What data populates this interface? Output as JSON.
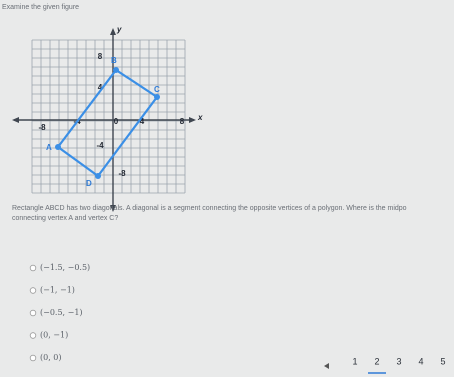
{
  "header": {
    "instruction": "Examine the given figure"
  },
  "figure": {
    "x_axis_label": "x",
    "y_axis_label": "y",
    "x_tick_labels": [
      "-8",
      "-4",
      "0",
      "4",
      "8"
    ],
    "y_tick_labels": [
      "8",
      "4",
      "-4",
      "-8"
    ],
    "vertices": [
      "A",
      "B",
      "C",
      "D"
    ]
  },
  "question": {
    "line1": "Rectangle ABCD has two diagonals. A diagonal is a segment connecting the opposite vertices of a polygon. Where is the midpo",
    "line2": "connecting vertex A and vertex C?"
  },
  "options": [
    "(−1.5, −0.5)",
    "(−1, −1)",
    "(−0.5, −1)",
    "(0, −1)",
    "(0, 0)"
  ],
  "pagination": [
    "1",
    "2",
    "3",
    "4",
    "5"
  ]
}
